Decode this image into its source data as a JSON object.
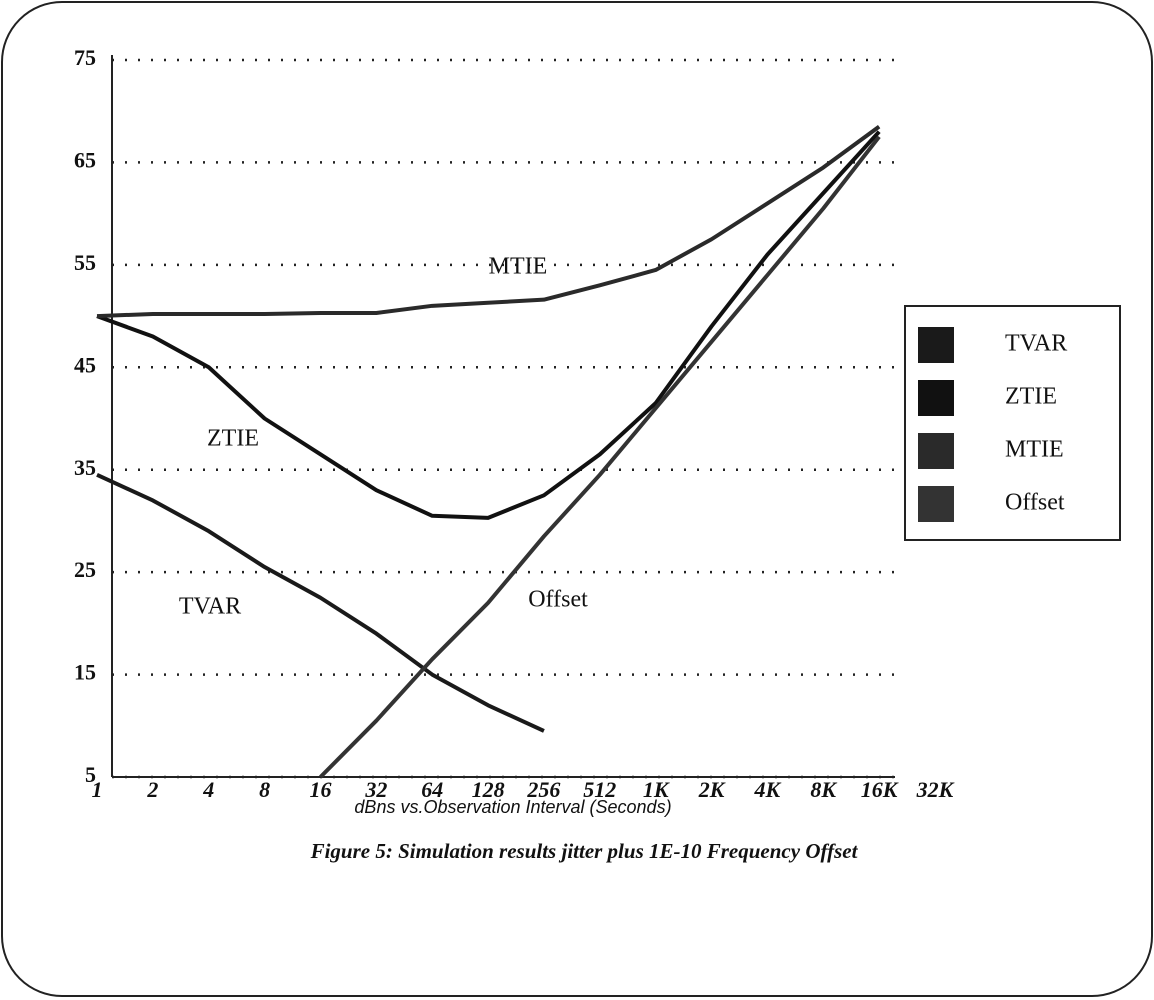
{
  "chart_data": {
    "type": "line",
    "title": "Figure 5: Simulation results jitter plus 1E-10 Frequency Offset",
    "x_label": "dBns vs.Observation Interval (Seconds)",
    "categories": [
      "1",
      "2",
      "4",
      "8",
      "16",
      "32",
      "64",
      "128",
      "256",
      "512",
      "1K",
      "2K",
      "4K",
      "8K",
      "16K",
      "32K"
    ],
    "series": [
      {
        "name": "TVAR",
        "color": "#1a1a1a",
        "values": [
          34.5,
          32,
          29,
          25.5,
          22.5,
          19,
          15,
          12,
          9.5,
          null,
          null,
          null,
          null,
          null,
          null,
          null
        ]
      },
      {
        "name": "ZTIE",
        "color": "#111111",
        "values": [
          50,
          48,
          45,
          40,
          36.5,
          33,
          30.5,
          30.3,
          32.5,
          36.5,
          41.5,
          49,
          56,
          62,
          68,
          null
        ]
      },
      {
        "name": "MTIE",
        "color": "#2a2a2a",
        "values": [
          50,
          50.2,
          50.2,
          50.2,
          50.3,
          50.3,
          51,
          51.3,
          51.6,
          53,
          54.5,
          57.5,
          61,
          64.5,
          68.5,
          null
        ]
      },
      {
        "name": "Offset",
        "color": "#333333",
        "values": [
          null,
          null,
          null,
          null,
          5,
          10.5,
          16.5,
          22,
          28.5,
          34.5,
          41,
          47.5,
          54,
          60.5,
          67.5,
          null
        ]
      }
    ],
    "annotations": [
      "MTIE",
      "ZTIE",
      "TVAR",
      "Offset"
    ],
    "ylim": [
      5,
      75
    ],
    "yticks": [
      5,
      15,
      25,
      35,
      45,
      55,
      65,
      75
    ],
    "grid": true,
    "legend": "right"
  }
}
